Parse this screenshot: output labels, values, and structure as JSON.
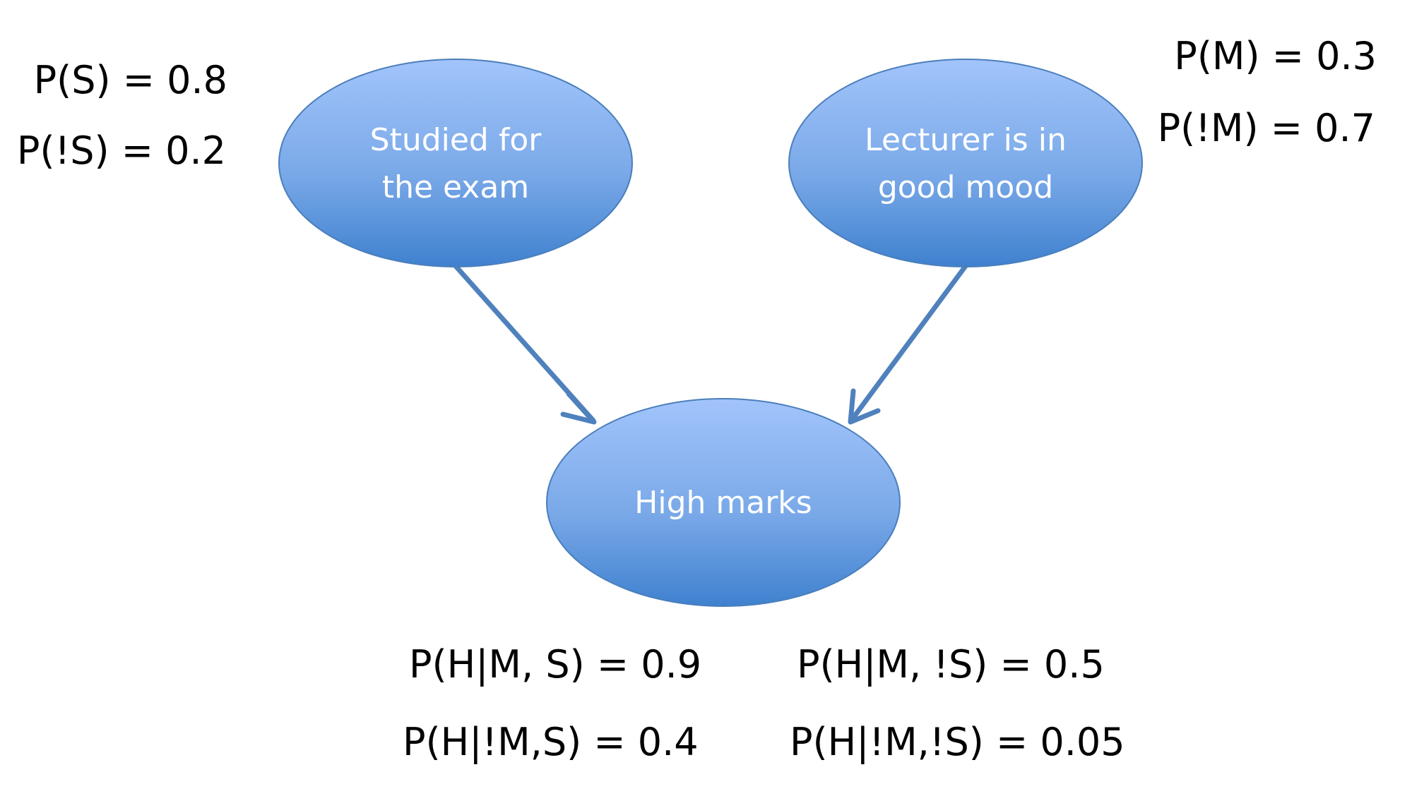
{
  "nodes": {
    "studied": {
      "line1": "Studied for",
      "line2": "the exam"
    },
    "mood": {
      "line1": "Lecturer is in",
      "line2": "good mood"
    },
    "high": {
      "line1": "High marks"
    }
  },
  "priors": {
    "ps": "P(S) = 0.8",
    "pns": "P(!S) = 0.2",
    "pm": "P(M) = 0.3",
    "pnm": "P(!M) = 0.7"
  },
  "conditionals": {
    "h_m_s": "P(H|M, S) = 0.9",
    "h_m_ns": "P(H|M, !S) = 0.5",
    "h_nm_s": "P(H|!M,S) = 0.4",
    "h_nm_ns": "P(H|!M,!S) = 0.05"
  },
  "colors": {
    "node_top": "#a2c4fb",
    "node_bottom": "#3f81cf",
    "node_stroke": "#4a7ebb",
    "arrow": "#4f81bd"
  }
}
